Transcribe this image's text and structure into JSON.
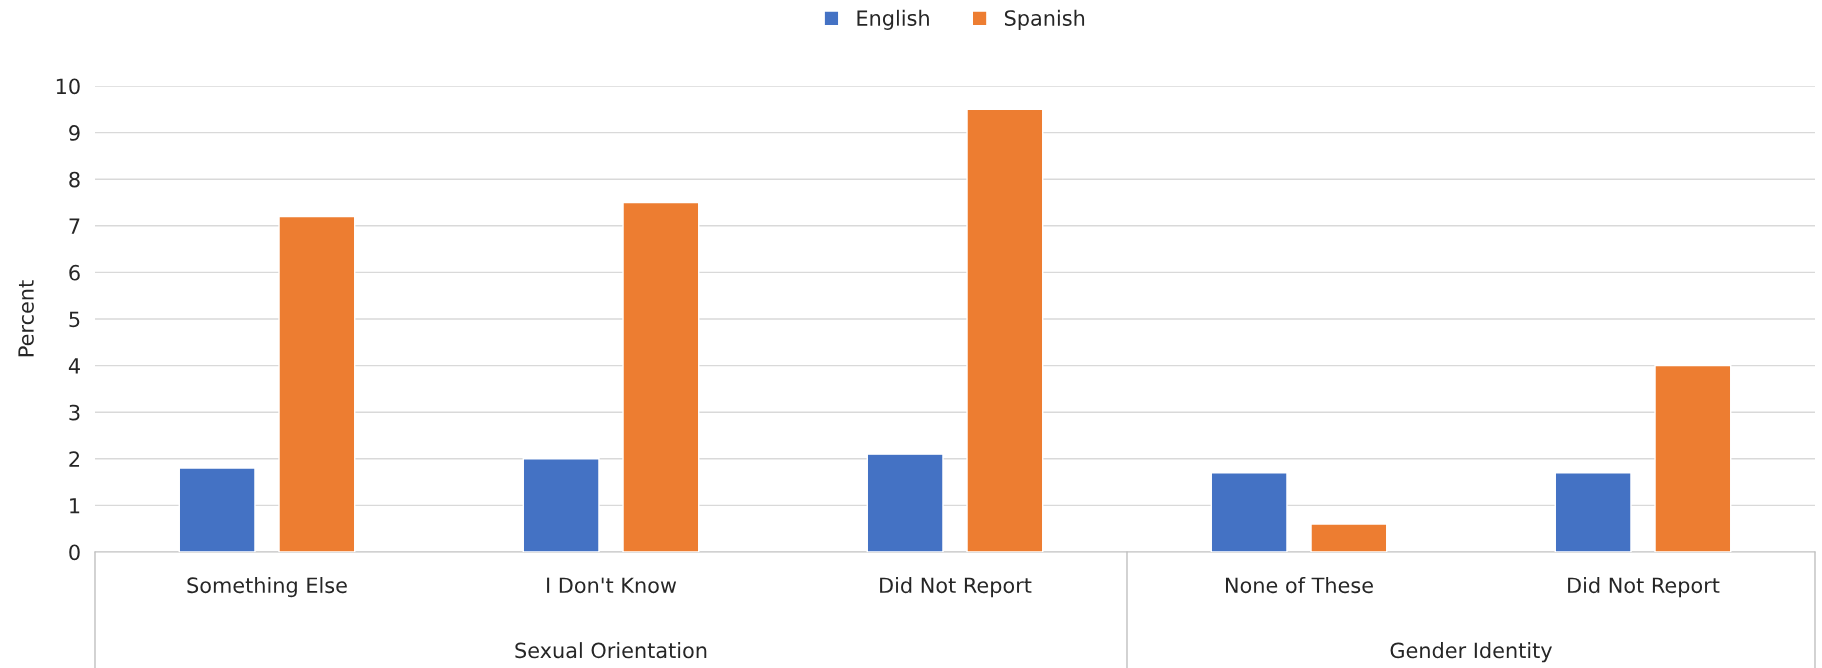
{
  "chart_data": {
    "type": "bar",
    "ylabel": "Percent",
    "categories": [
      "Something Else",
      "I Don't Know",
      "Did Not Report",
      "None of These",
      "Did Not Report"
    ],
    "series": [
      {
        "name": "English",
        "color": "#4472c4",
        "values": [
          1.8,
          2.0,
          2.1,
          1.7,
          1.7
        ]
      },
      {
        "name": "Spanish",
        "color": "#ed7d31",
        "values": [
          7.2,
          7.5,
          9.5,
          0.6,
          4.0
        ]
      }
    ],
    "ylim": [
      0,
      10
    ],
    "yticks": [
      0,
      1,
      2,
      3,
      4,
      5,
      6,
      7,
      8,
      9,
      10
    ],
    "grid": "y",
    "legend": "top",
    "annotations": [
      "Sexual Orientation",
      "Gender Identity"
    ]
  }
}
